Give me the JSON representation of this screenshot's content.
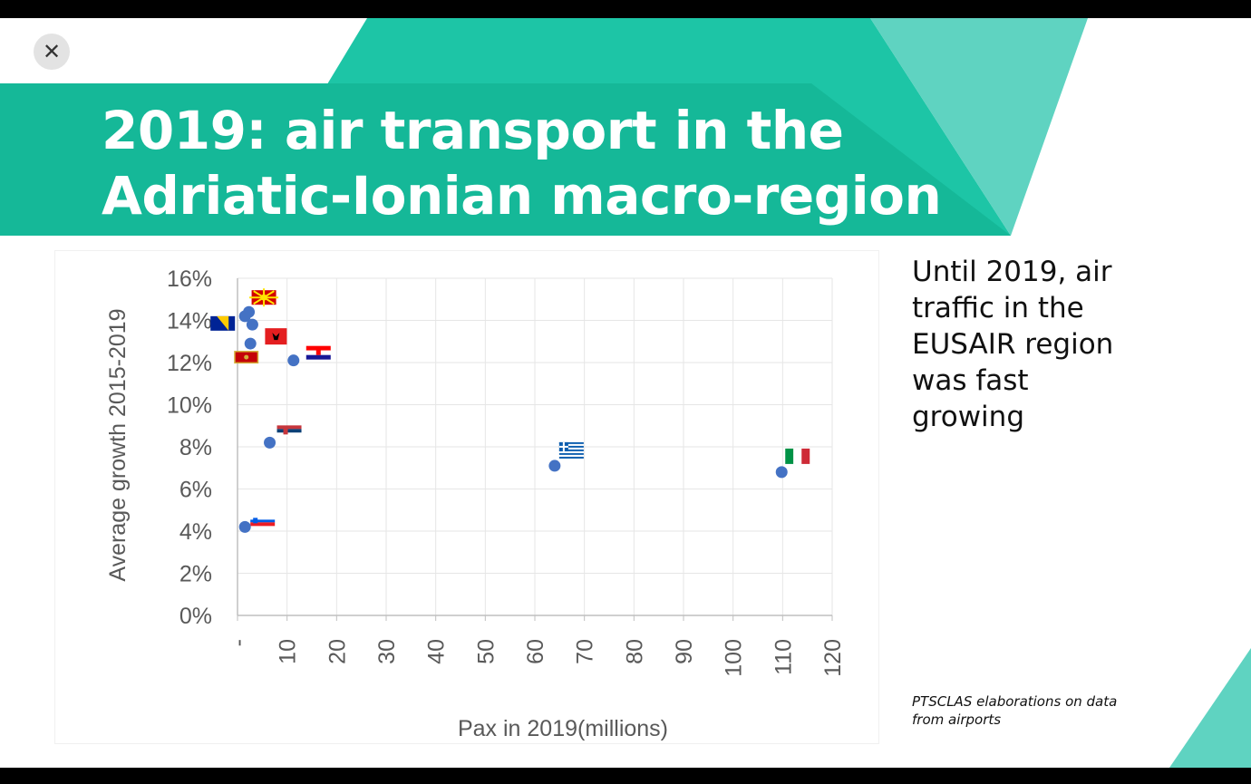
{
  "slide": {
    "title_line1": "2019: air transport in the",
    "title_line2": "Adriatic-Ionian macro-region",
    "close_label": "✕",
    "side_note": [
      "Until 2019, air",
      "traffic in the",
      "EUSAIR region",
      "was fast",
      "growing"
    ],
    "source_note": [
      "PTSCLAS elaborations on data",
      "from airports"
    ],
    "colors": {
      "banner": "#1dc5a6",
      "banner_dark": "#13b597",
      "banner_light": "#5fd3c1",
      "dot": "#4472c4",
      "axis_text": "#595959"
    }
  },
  "chart_data": {
    "type": "scatter",
    "title": "",
    "xlabel": "Pax in 2019(millions)",
    "ylabel": "Average growth 2015-2019",
    "xlim": [
      0,
      120
    ],
    "ylim": [
      0,
      16
    ],
    "x_ticks": [
      "-",
      "10",
      "20",
      "30",
      "40",
      "50",
      "60",
      "70",
      "80",
      "90",
      "100",
      "110",
      "120"
    ],
    "x_tick_values": [
      0,
      10,
      20,
      30,
      40,
      50,
      60,
      70,
      80,
      90,
      100,
      110,
      120
    ],
    "y_ticks": [
      "0%",
      "2%",
      "4%",
      "6%",
      "8%",
      "10%",
      "12%",
      "14%",
      "16%"
    ],
    "y_tick_values": [
      0,
      2,
      4,
      6,
      8,
      10,
      12,
      14,
      16
    ],
    "grid": true,
    "points": [
      {
        "label": "North Macedonia",
        "x": 2.3,
        "y": 14.4,
        "flag": "north-macedonia"
      },
      {
        "label": "Bosnia and Herzegovina",
        "x": 1.5,
        "y": 14.2,
        "flag": "bosnia"
      },
      {
        "label": "Albania",
        "x": 3.0,
        "y": 13.8,
        "flag": "albania"
      },
      {
        "label": "Montenegro",
        "x": 2.6,
        "y": 12.9,
        "flag": "montenegro"
      },
      {
        "label": "Croatia",
        "x": 11.3,
        "y": 12.1,
        "flag": "croatia"
      },
      {
        "label": "Serbia",
        "x": 6.5,
        "y": 8.2,
        "flag": "serbia"
      },
      {
        "label": "Greece",
        "x": 64.0,
        "y": 7.1,
        "flag": "greece"
      },
      {
        "label": "Italy",
        "x": 109.8,
        "y": 6.8,
        "flag": "italy"
      },
      {
        "label": "Slovenia",
        "x": 1.5,
        "y": 4.2,
        "flag": "slovenia"
      }
    ]
  }
}
